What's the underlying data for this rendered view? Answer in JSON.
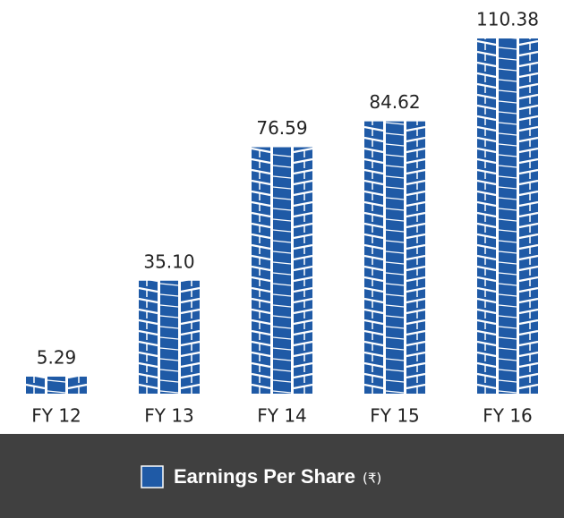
{
  "chart_data": {
    "type": "bar",
    "categories": [
      "FY 12",
      "FY 13",
      "FY 14",
      "FY 15",
      "FY 16"
    ],
    "series": [
      {
        "name": "Earnings Per Share",
        "color": "#1f5aa6",
        "values": [
          5.29,
          35.1,
          76.59,
          84.62,
          110.38
        ],
        "value_labels": [
          "5.29",
          "35.10",
          "76.59",
          "84.62",
          "110.38"
        ]
      }
    ],
    "unit": "(₹)"
  }
}
